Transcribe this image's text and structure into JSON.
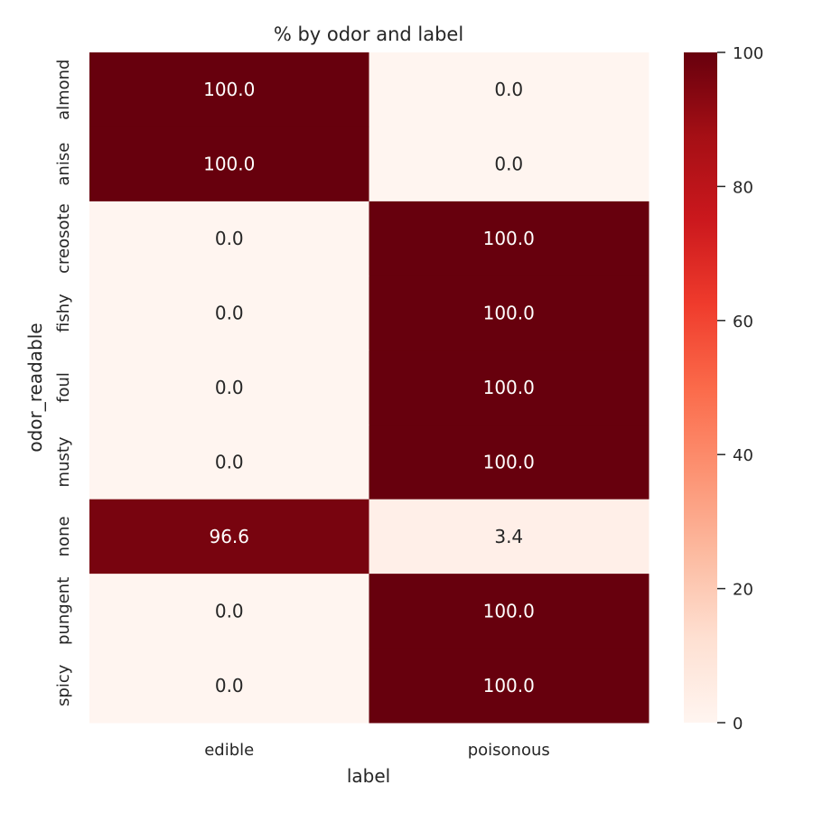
{
  "chart_data": {
    "type": "heatmap",
    "title": "% by odor and label",
    "xlabel": "label",
    "ylabel": "odor_readable",
    "x_categories": [
      "edible",
      "poisonous"
    ],
    "y_categories": [
      "almond",
      "anise",
      "creosote",
      "fishy",
      "foul",
      "musty",
      "none",
      "pungent",
      "spicy"
    ],
    "values": [
      [
        100.0,
        0.0
      ],
      [
        100.0,
        0.0
      ],
      [
        0.0,
        100.0
      ],
      [
        0.0,
        100.0
      ],
      [
        0.0,
        100.0
      ],
      [
        0.0,
        100.0
      ],
      [
        96.6,
        3.4
      ],
      [
        0.0,
        100.0
      ],
      [
        0.0,
        100.0
      ]
    ],
    "value_labels": [
      [
        "100.0",
        "0.0"
      ],
      [
        "100.0",
        "0.0"
      ],
      [
        "0.0",
        "100.0"
      ],
      [
        "0.0",
        "100.0"
      ],
      [
        "0.0",
        "100.0"
      ],
      [
        "0.0",
        "100.0"
      ],
      [
        "96.6",
        "3.4"
      ],
      [
        "0.0",
        "100.0"
      ],
      [
        "0.0",
        "100.0"
      ]
    ],
    "colorbar": {
      "min": 0,
      "max": 100,
      "ticks": [
        0,
        20,
        40,
        60,
        80,
        100
      ]
    },
    "colormap": [
      "#fff5f0",
      "#fee0d2",
      "#fcbba1",
      "#fc9272",
      "#fb6a4a",
      "#ef3b2c",
      "#cb181d",
      "#a50f15",
      "#67000d"
    ],
    "grid": false
  }
}
